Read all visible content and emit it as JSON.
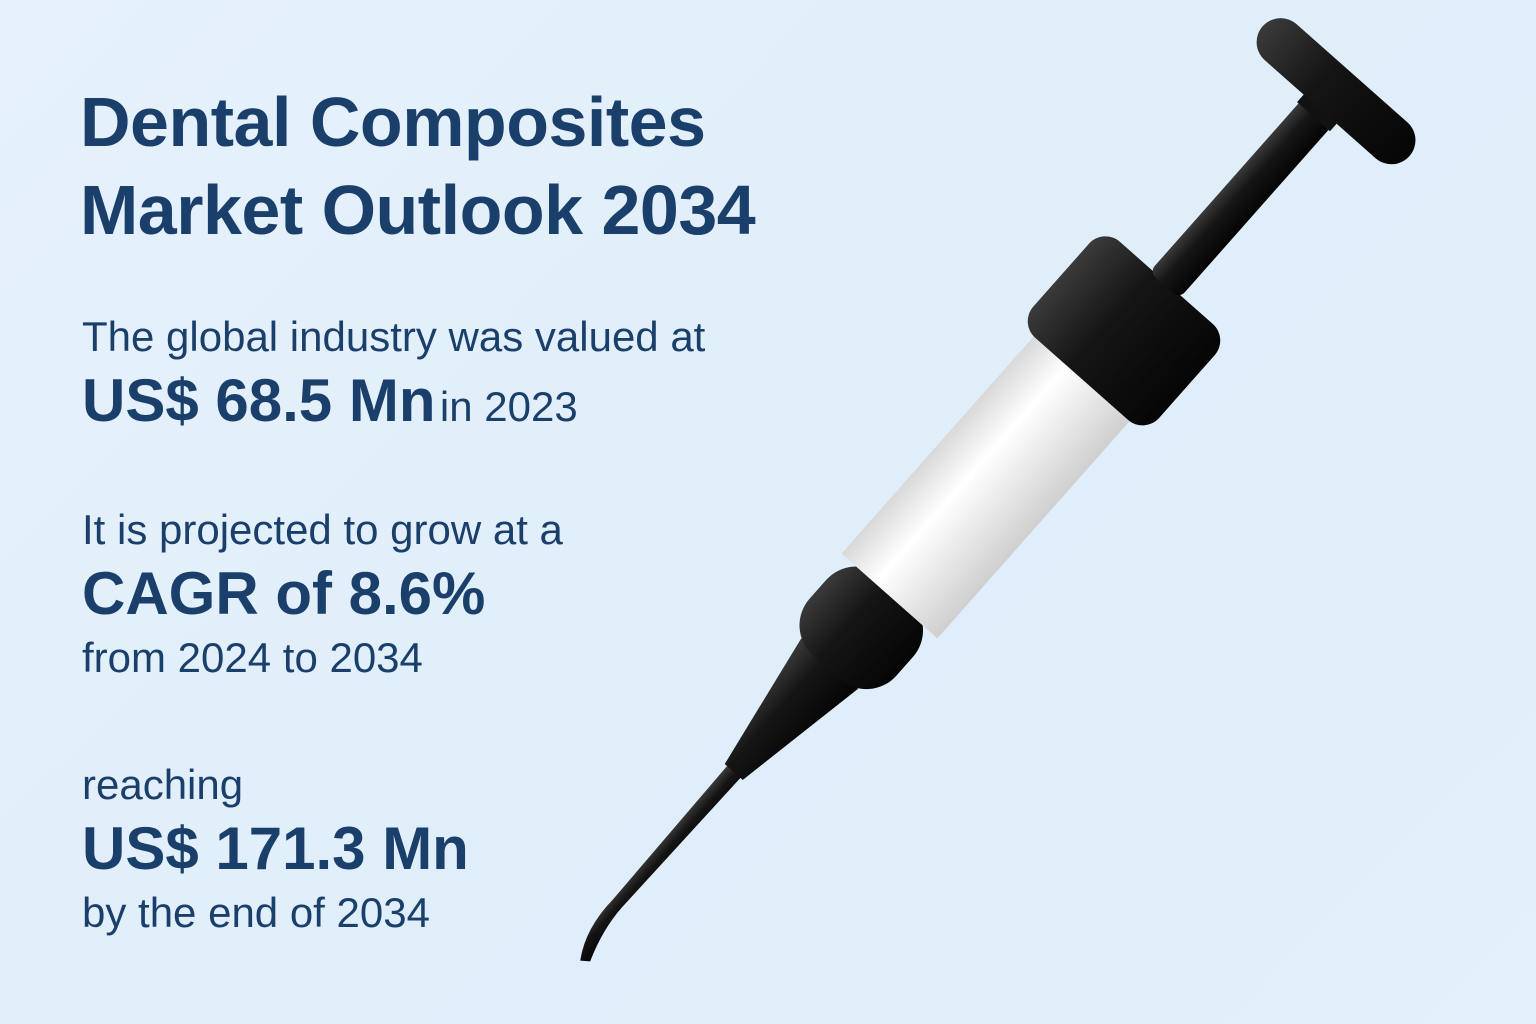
{
  "header": {
    "title_lines": [
      "Dental Composites",
      "Market Outlook 2034"
    ]
  },
  "stats": [
    {
      "lead": "The global industry was valued at",
      "highlight": "US$ 68.5 Mn",
      "tail": "in 2023"
    },
    {
      "lead": "It is projected to grow at a",
      "highlight": "CAGR of 8.6%",
      "tail": "from 2024 to 2034"
    },
    {
      "lead": "reaching",
      "highlight": "US$ 171.3 Mn",
      "tail": "by the end of 2034"
    }
  ]
}
